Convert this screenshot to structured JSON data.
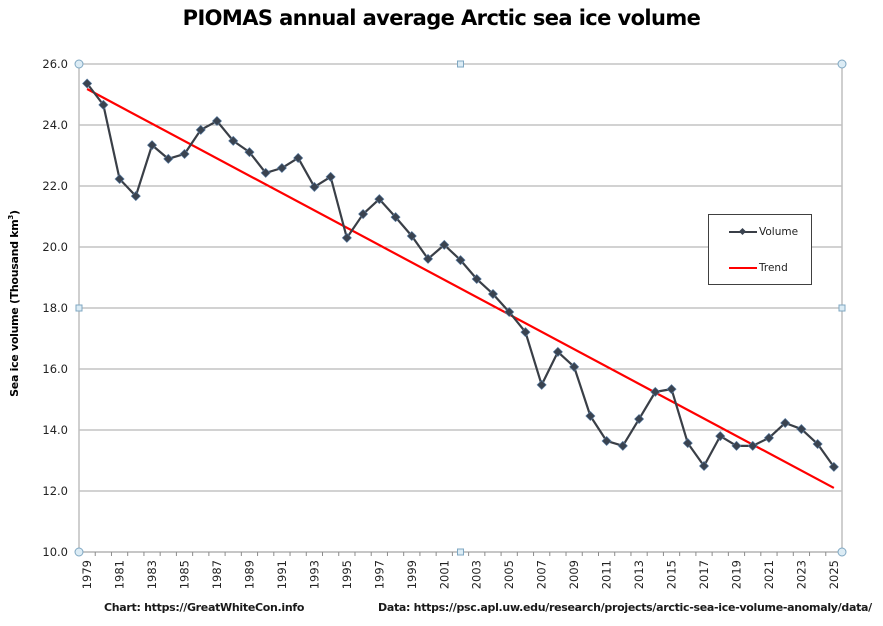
{
  "chart_data": {
    "type": "line",
    "title": "PIOMAS annual average Arctic sea ice volume",
    "xlabel": "",
    "ylabel": "Sea ice volume (Thousand km³)",
    "ylabel_main": "Sea ice volume (Thousand km",
    "ylabel_sup": "3",
    "ylabel_end": ")",
    "ylim": [
      10.0,
      26.0
    ],
    "yticks": [
      "10.0",
      "12.0",
      "14.0",
      "16.0",
      "18.0",
      "20.0",
      "22.0",
      "24.0",
      "26.0"
    ],
    "grid": true,
    "legend_position": "right",
    "x": [
      1979,
      1980,
      1981,
      1982,
      1983,
      1984,
      1985,
      1986,
      1987,
      1988,
      1989,
      1990,
      1991,
      1992,
      1993,
      1994,
      1995,
      1996,
      1997,
      1998,
      1999,
      2000,
      2001,
      2002,
      2003,
      2004,
      2005,
      2006,
      2007,
      2008,
      2009,
      2010,
      2011,
      2012,
      2013,
      2014,
      2015,
      2016,
      2017,
      2018,
      2019,
      2020,
      2021,
      2022,
      2023,
      2024,
      2025
    ],
    "xtick_labels": [
      "1979",
      "1981",
      "1983",
      "1985",
      "1987",
      "1989",
      "1991",
      "1993",
      "1995",
      "1997",
      "1999",
      "2001",
      "2003",
      "2005",
      "2007",
      "2009",
      "2011",
      "2013",
      "2015",
      "2017",
      "2019",
      "2021",
      "2023",
      "2025"
    ],
    "series": [
      {
        "name": "Volume",
        "color": "#3a3f47",
        "marker": "diamond",
        "values": [
          25.36,
          24.66,
          22.23,
          21.67,
          23.34,
          22.89,
          23.05,
          23.84,
          24.13,
          23.48,
          23.11,
          22.43,
          22.59,
          22.92,
          21.97,
          22.3,
          20.3,
          21.08,
          21.57,
          20.98,
          20.36,
          19.61,
          20.07,
          19.57,
          18.95,
          18.46,
          17.87,
          17.21,
          15.48,
          16.56,
          16.07,
          14.46,
          13.64,
          13.48,
          14.36,
          15.25,
          15.34,
          13.57,
          12.82,
          13.8,
          13.48,
          13.48,
          13.74,
          14.23,
          14.03,
          13.54,
          12.79
        ]
      },
      {
        "name": "Trend",
        "color": "#ff0000",
        "marker": "none",
        "start": {
          "x": 1979,
          "y": 25.18
        },
        "end": {
          "x": 2025,
          "y": 12.1
        }
      }
    ]
  },
  "credits": {
    "chart": "Chart: https://GreatWhiteCon.info",
    "data": "Data:  https://psc.apl.uw.edu/research/projects/arctic-sea-ice-volume-anomaly/data/"
  },
  "colors": {
    "gridline": "#a6a6a6",
    "axis": "#bfbfbf",
    "handle_fill": "#dcecf5",
    "handle_stroke": "#7fa7c2"
  }
}
